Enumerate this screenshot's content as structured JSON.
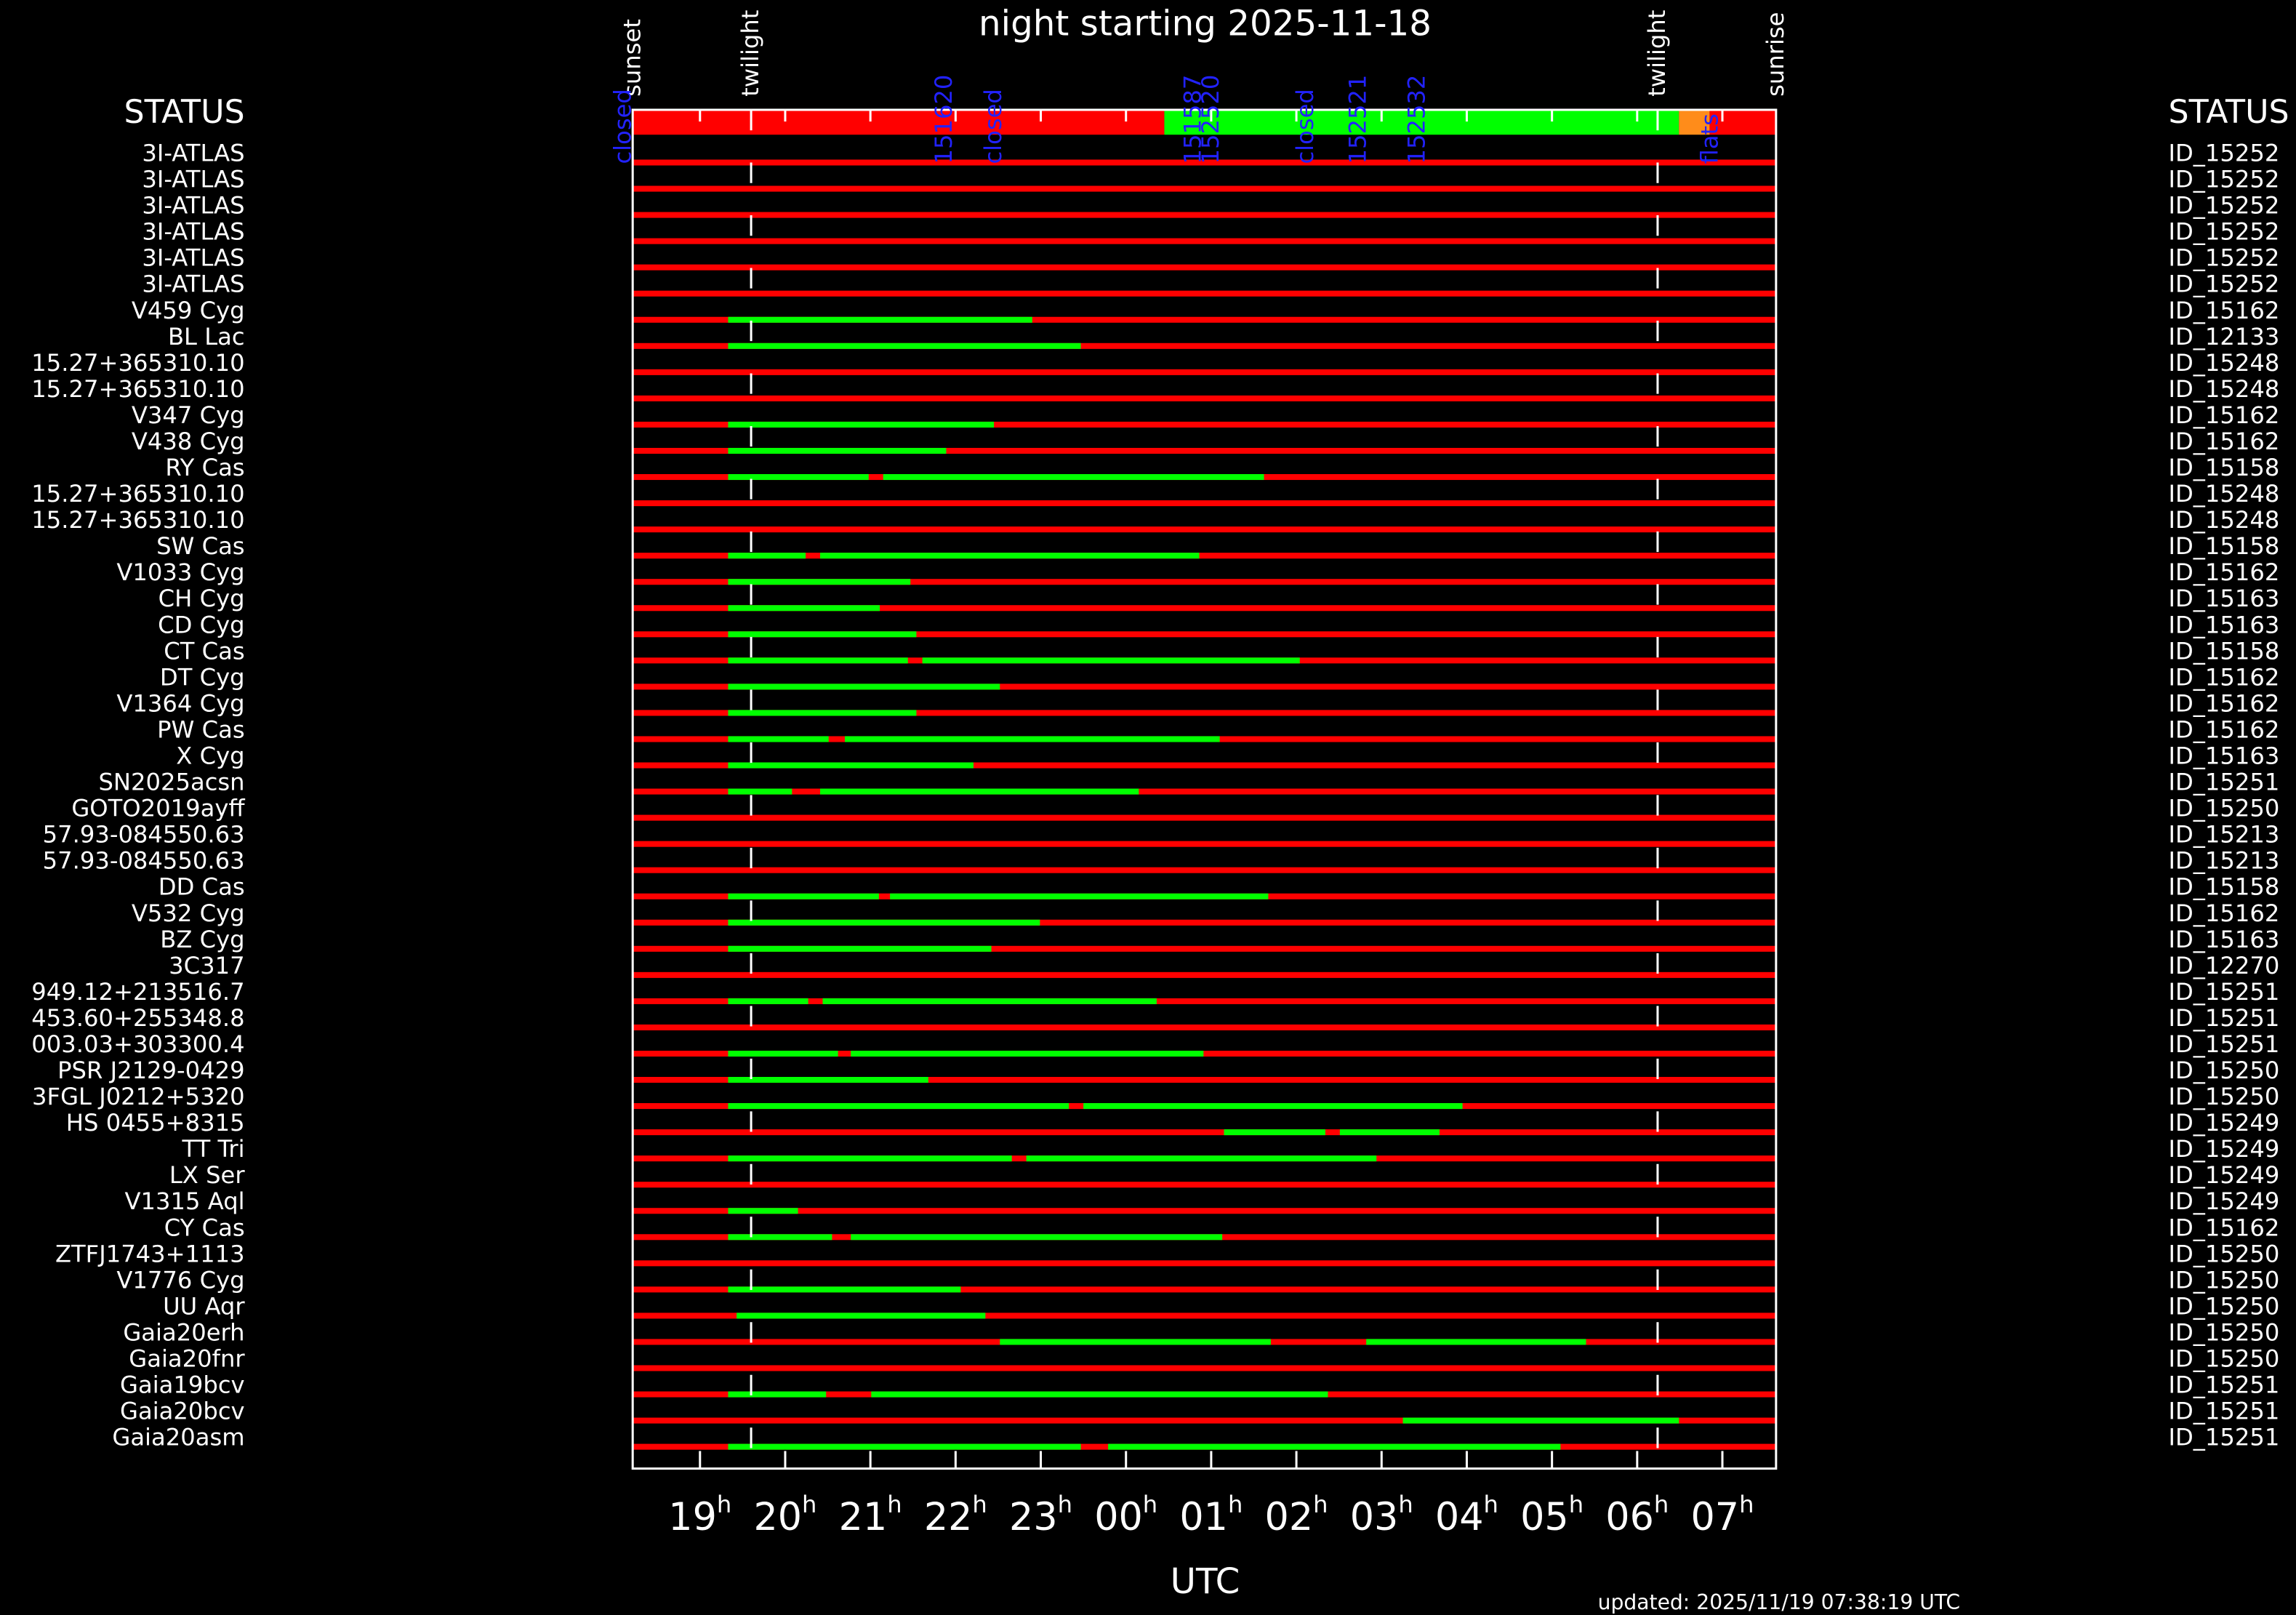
{
  "chart_data": {
    "type": "gantt",
    "title": "night starting 2025-11-18",
    "x_label": "UTC",
    "updated": "updated: 2025/11/19 07:38:19 UTC",
    "left_header": "STATUS",
    "right_header": "STATUS",
    "xlim": [
      18.21,
      31.63
    ],
    "xticks": [
      {
        "value": 19,
        "label": "19"
      },
      {
        "value": 20,
        "label": "20"
      },
      {
        "value": 21,
        "label": "21"
      },
      {
        "value": 22,
        "label": "22"
      },
      {
        "value": 23,
        "label": "23"
      },
      {
        "value": 24,
        "label": "00"
      },
      {
        "value": 25,
        "label": "01"
      },
      {
        "value": 26,
        "label": "02"
      },
      {
        "value": 27,
        "label": "03"
      },
      {
        "value": 28,
        "label": "04"
      },
      {
        "value": 29,
        "label": "05"
      },
      {
        "value": 30,
        "label": "06"
      },
      {
        "value": 31,
        "label": "07"
      }
    ],
    "tick_suffix": "h",
    "events": [
      {
        "label": "sunset",
        "x": 18.21,
        "line": false
      },
      {
        "label": "twilight",
        "x": 19.6,
        "line": true
      },
      {
        "label": "twilight",
        "x": 30.24,
        "line": true
      },
      {
        "label": "sunrise",
        "x": 31.63,
        "line": false
      }
    ],
    "status_bar": [
      {
        "start": 18.21,
        "end": 24.45,
        "color": "#ff0000"
      },
      {
        "start": 24.45,
        "end": 30.49,
        "color": "#00ff00"
      },
      {
        "start": 30.49,
        "end": 30.85,
        "color": "#ff8c1a"
      },
      {
        "start": 30.85,
        "end": 31.63,
        "color": "#ff0000"
      }
    ],
    "status_annotations": [
      {
        "text": "closed",
        "x": 18.1
      },
      {
        "text": "151620",
        "x": 21.87
      },
      {
        "text": "closed",
        "x": 22.45
      },
      {
        "text": "151587",
        "x": 24.79
      },
      {
        "text": "152520",
        "x": 25.0
      },
      {
        "text": "closed",
        "x": 26.11
      },
      {
        "text": "152521",
        "x": 26.73
      },
      {
        "text": "152532",
        "x": 27.42
      },
      {
        "text": "flats",
        "x": 30.86
      }
    ],
    "bar_color": "#ff0000",
    "segment_color": "#00ff00",
    "rows": [
      {
        "name": "3I-ATLAS",
        "id": "ID_15252",
        "segments": []
      },
      {
        "name": "3I-ATLAS",
        "id": "ID_15252",
        "segments": []
      },
      {
        "name": "3I-ATLAS",
        "id": "ID_15252",
        "segments": []
      },
      {
        "name": "3I-ATLAS",
        "id": "ID_15252",
        "segments": []
      },
      {
        "name": "3I-ATLAS",
        "id": "ID_15252",
        "segments": []
      },
      {
        "name": "3I-ATLAS",
        "id": "ID_15252",
        "segments": []
      },
      {
        "name": "V459 Cyg",
        "id": "ID_15162",
        "segments": [
          [
            19.33,
            22.9
          ]
        ]
      },
      {
        "name": "BL Lac",
        "id": "ID_12133",
        "segments": [
          [
            19.33,
            23.47
          ]
        ]
      },
      {
        "name": "15.27+365310.10",
        "id": "ID_15248",
        "segments": []
      },
      {
        "name": "15.27+365310.10",
        "id": "ID_15248",
        "segments": []
      },
      {
        "name": "V347 Cyg",
        "id": "ID_15162",
        "segments": [
          [
            19.33,
            22.45
          ]
        ]
      },
      {
        "name": "V438 Cyg",
        "id": "ID_15162",
        "segments": [
          [
            19.33,
            21.89
          ]
        ]
      },
      {
        "name": "RY Cas",
        "id": "ID_15158",
        "segments": [
          [
            19.33,
            20.98
          ],
          [
            21.15,
            25.62
          ]
        ]
      },
      {
        "name": "15.27+365310.10",
        "id": "ID_15248",
        "segments": []
      },
      {
        "name": "15.27+365310.10",
        "id": "ID_15248",
        "segments": []
      },
      {
        "name": "SW Cas",
        "id": "ID_15158",
        "segments": [
          [
            19.33,
            20.24
          ],
          [
            20.41,
            24.86
          ]
        ]
      },
      {
        "name": "V1033 Cyg",
        "id": "ID_15162",
        "segments": [
          [
            19.33,
            21.47
          ]
        ]
      },
      {
        "name": "CH Cyg",
        "id": "ID_15163",
        "segments": [
          [
            19.33,
            21.11
          ]
        ]
      },
      {
        "name": "CD Cyg",
        "id": "ID_15163",
        "segments": [
          [
            19.33,
            21.54
          ]
        ]
      },
      {
        "name": "CT Cas",
        "id": "ID_15158",
        "segments": [
          [
            19.33,
            21.44
          ],
          [
            21.61,
            26.04
          ]
        ]
      },
      {
        "name": "DT Cyg",
        "id": "ID_15162",
        "segments": [
          [
            19.33,
            22.52
          ]
        ]
      },
      {
        "name": "V1364 Cyg",
        "id": "ID_15162",
        "segments": [
          [
            19.33,
            21.54
          ]
        ]
      },
      {
        "name": "PW Cas",
        "id": "ID_15162",
        "segments": [
          [
            19.33,
            20.51
          ],
          [
            20.7,
            25.1
          ]
        ]
      },
      {
        "name": "X Cyg",
        "id": "ID_15163",
        "segments": [
          [
            19.33,
            22.21
          ]
        ]
      },
      {
        "name": "SN2025acsn",
        "id": "ID_15251",
        "segments": [
          [
            19.33,
            20.08
          ],
          [
            20.41,
            24.15
          ]
        ]
      },
      {
        "name": "GOTO2019ayff",
        "id": "ID_15250",
        "segments": []
      },
      {
        "name": "57.93-084550.63",
        "id": "ID_15213",
        "segments": []
      },
      {
        "name": "57.93-084550.63",
        "id": "ID_15213",
        "segments": []
      },
      {
        "name": "DD Cas",
        "id": "ID_15158",
        "segments": [
          [
            19.33,
            21.1
          ],
          [
            21.23,
            25.67
          ]
        ]
      },
      {
        "name": "V532 Cyg",
        "id": "ID_15162",
        "segments": [
          [
            19.33,
            22.99
          ]
        ]
      },
      {
        "name": "BZ Cyg",
        "id": "ID_15163",
        "segments": [
          [
            19.33,
            22.42
          ]
        ]
      },
      {
        "name": "3C317",
        "id": "ID_12270",
        "segments": []
      },
      {
        "name": "949.12+213516.7",
        "id": "ID_15251",
        "segments": [
          [
            19.33,
            20.27
          ],
          [
            20.44,
            24.36
          ]
        ]
      },
      {
        "name": "453.60+255348.8",
        "id": "ID_15251",
        "segments": []
      },
      {
        "name": "003.03+303300.4",
        "id": "ID_15251",
        "segments": [
          [
            19.33,
            20.62
          ],
          [
            20.77,
            24.91
          ]
        ]
      },
      {
        "name": "PSR J2129-0429",
        "id": "ID_15250",
        "segments": [
          [
            19.33,
            21.68
          ]
        ]
      },
      {
        "name": "3FGL J0212+5320",
        "id": "ID_15250",
        "segments": [
          [
            19.33,
            23.33
          ],
          [
            23.5,
            27.95
          ]
        ]
      },
      {
        "name": "HS 0455+8315",
        "id": "ID_15249",
        "segments": [
          [
            25.15,
            26.34
          ],
          [
            26.51,
            27.68
          ]
        ]
      },
      {
        "name": "TT Tri",
        "id": "ID_15249",
        "segments": [
          [
            19.33,
            22.66
          ],
          [
            22.83,
            26.94
          ]
        ]
      },
      {
        "name": "LX Ser",
        "id": "ID_15249",
        "segments": []
      },
      {
        "name": "V1315 Aql",
        "id": "ID_15249",
        "segments": [
          [
            19.33,
            20.15
          ]
        ]
      },
      {
        "name": "CY Cas",
        "id": "ID_15162",
        "segments": [
          [
            19.33,
            20.55
          ],
          [
            20.77,
            25.13
          ]
        ]
      },
      {
        "name": "ZTFJ1743+1113",
        "id": "ID_15250",
        "segments": []
      },
      {
        "name": "V1776 Cyg",
        "id": "ID_15250",
        "segments": [
          [
            19.33,
            22.06
          ]
        ]
      },
      {
        "name": "UU Aqr",
        "id": "ID_15250",
        "segments": [
          [
            19.43,
            22.35
          ]
        ]
      },
      {
        "name": "Gaia20erh",
        "id": "ID_15250",
        "segments": [
          [
            22.52,
            25.7
          ],
          [
            26.82,
            29.4
          ]
        ]
      },
      {
        "name": "Gaia20fnr",
        "id": "ID_15250",
        "segments": []
      },
      {
        "name": "Gaia19bcv",
        "id": "ID_15251",
        "segments": [
          [
            19.33,
            20.48
          ],
          [
            21.01,
            26.37
          ]
        ]
      },
      {
        "name": "Gaia20bcv",
        "id": "ID_15251",
        "segments": [
          [
            27.25,
            30.49
          ]
        ]
      },
      {
        "name": "Gaia20asm",
        "id": "ID_15251",
        "segments": [
          [
            19.33,
            23.47
          ],
          [
            23.79,
            29.1
          ]
        ]
      }
    ]
  }
}
